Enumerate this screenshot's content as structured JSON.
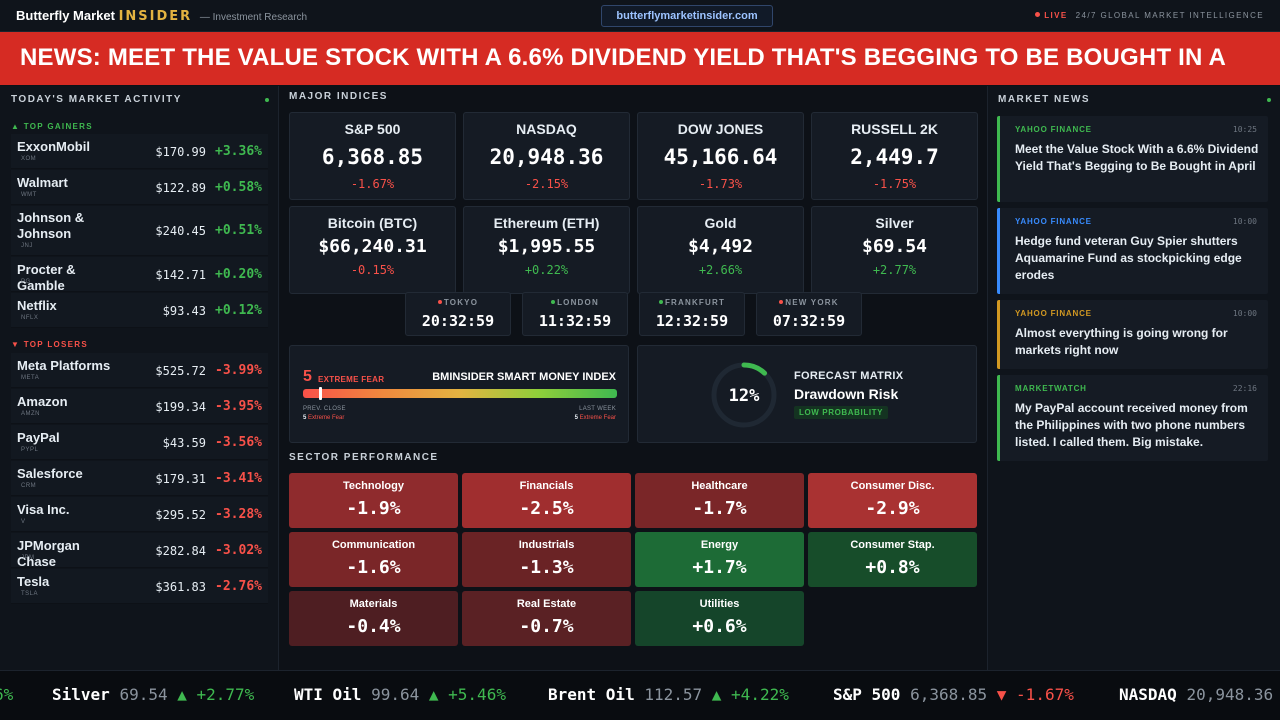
{
  "header": {
    "brand_main": "Butterfly Market",
    "brand_accent": "INSIDER",
    "brand_sub": "— Investment Research",
    "url": "butterflymarketinsider.com",
    "live_label": "LIVE",
    "tagline": "24/7 GLOBAL MARKET INTELLIGENCE"
  },
  "banner": {
    "text": "NEWS: MEET THE VALUE STOCK WITH A 6.6% DIVIDEND YIELD THAT'S BEGGING TO BE BOUGHT IN A"
  },
  "market_activity": {
    "title": "TODAY'S MARKET ACTIVITY",
    "gainers_label": "▲ TOP GAINERS",
    "losers_label": "▼ TOP LOSERS",
    "gainers": [
      {
        "name": "ExxonMobil",
        "ticker": "XOM",
        "price": "$170.99",
        "change": "+3.36%"
      },
      {
        "name": "Walmart",
        "ticker": "WMT",
        "price": "$122.89",
        "change": "+0.58%"
      },
      {
        "name": "Johnson & Johnson",
        "ticker": "JNJ",
        "price": "$240.45",
        "change": "+0.51%"
      },
      {
        "name": "Procter & Gamble",
        "ticker": "PG",
        "price": "$142.71",
        "change": "+0.20%"
      },
      {
        "name": "Netflix",
        "ticker": "NFLX",
        "price": "$93.43",
        "change": "+0.12%"
      }
    ],
    "losers": [
      {
        "name": "Meta Platforms",
        "ticker": "META",
        "price": "$525.72",
        "change": "-3.99%"
      },
      {
        "name": "Amazon",
        "ticker": "AMZN",
        "price": "$199.34",
        "change": "-3.95%"
      },
      {
        "name": "PayPal",
        "ticker": "PYPL",
        "price": "$43.59",
        "change": "-3.56%"
      },
      {
        "name": "Salesforce",
        "ticker": "CRM",
        "price": "$179.31",
        "change": "-3.41%"
      },
      {
        "name": "Visa Inc.",
        "ticker": "V",
        "price": "$295.52",
        "change": "-3.28%"
      },
      {
        "name": "JPMorgan Chase",
        "ticker": "JPM",
        "price": "$282.84",
        "change": "-3.02%"
      },
      {
        "name": "Tesla",
        "ticker": "TSLA",
        "price": "$361.83",
        "change": "-2.76%"
      }
    ]
  },
  "indices": {
    "title": "MAJOR INDICES",
    "items": [
      {
        "name": "S&P 500",
        "value": "6,368.85",
        "change": "-1.67%",
        "dir": "down"
      },
      {
        "name": "NASDAQ",
        "value": "20,948.36",
        "change": "-2.15%",
        "dir": "down"
      },
      {
        "name": "DOW JONES",
        "value": "45,166.64",
        "change": "-1.73%",
        "dir": "down"
      },
      {
        "name": "RUSSELL 2K",
        "value": "2,449.7",
        "change": "-1.75%",
        "dir": "down"
      },
      {
        "name": "Bitcoin (BTC)",
        "value": "$66,240.31",
        "change": "-0.15%",
        "dir": "down"
      },
      {
        "name": "Ethereum (ETH)",
        "value": "$1,995.55",
        "change": "+0.22%",
        "dir": "up"
      },
      {
        "name": "Gold",
        "value": "$4,492",
        "change": "+2.66%",
        "dir": "up"
      },
      {
        "name": "Silver",
        "value": "$69.54",
        "change": "+2.77%",
        "dir": "up"
      }
    ]
  },
  "clocks": [
    {
      "city": "TOKYO",
      "time": "20:32:59",
      "color": "#f85149"
    },
    {
      "city": "LONDON",
      "time": "11:32:59",
      "color": "#3fb950"
    },
    {
      "city": "FRANKFURT",
      "time": "12:32:59",
      "color": "#3fb950"
    },
    {
      "city": "NEW YORK",
      "time": "07:32:59",
      "color": "#f85149"
    }
  ],
  "smart_money": {
    "value": "5",
    "label": "EXTREME FEAR",
    "title": "BMINSIDER SMART MONEY INDEX",
    "level_percent": 5,
    "prev_close_label": "PREV. CLOSE",
    "prev_close_value": "5",
    "prev_close_text": "Extreme Fear",
    "last_week_label": "LAST WEEK",
    "last_week_value": "5",
    "last_week_text": "Extreme Fear"
  },
  "forecast": {
    "percent": "12%",
    "percent_value": 12,
    "label": "FORECAST MATRIX",
    "title": "Drawdown Risk",
    "badge": "LOW PROBABILITY"
  },
  "sectors": {
    "title": "SECTOR PERFORMANCE",
    "items": [
      {
        "name": "Technology",
        "value": "-1.9%",
        "color": "#8f2b2d"
      },
      {
        "name": "Financials",
        "value": "-2.5%",
        "color": "#a02e2f"
      },
      {
        "name": "Healthcare",
        "value": "-1.7%",
        "color": "#7a2628"
      },
      {
        "name": "Consumer Disc.",
        "value": "-2.9%",
        "color": "#a93232"
      },
      {
        "name": "Communication",
        "value": "-1.6%",
        "color": "#7a2628"
      },
      {
        "name": "Industrials",
        "value": "-1.3%",
        "color": "#6a2325"
      },
      {
        "name": "Energy",
        "value": "+1.7%",
        "color": "#1d6b36"
      },
      {
        "name": "Consumer Stap.",
        "value": "+0.8%",
        "color": "#174d2a"
      },
      {
        "name": "Materials",
        "value": "-0.4%",
        "color": "#4e1e22"
      },
      {
        "name": "Real Estate",
        "value": "-0.7%",
        "color": "#5a2124"
      },
      {
        "name": "Utilities",
        "value": "+0.6%",
        "color": "#15452a"
      }
    ]
  },
  "market_news": {
    "title": "MARKET NEWS",
    "items": [
      {
        "source": "YAHOO FINANCE",
        "time": "10:25",
        "headline": "Meet the Value Stock With a 6.6% Dividend Yield That's Begging to Be Bought in April",
        "color": "#3fb950"
      },
      {
        "source": "YAHOO FINANCE",
        "time": "10:00",
        "headline": "Hedge fund veteran Guy Spier shutters Aquamarine Fund as stockpicking edge erodes",
        "color": "#388bfd"
      },
      {
        "source": "YAHOO FINANCE",
        "time": "10:00",
        "headline": "Almost everything is going wrong for markets right now",
        "color": "#d29922"
      },
      {
        "source": "MARKETWATCH",
        "time": "22:16",
        "headline": "My PayPal account received money from the Philippines with two phone numbers listed. I called them. Big mistake.",
        "color": "#3fb950"
      }
    ]
  },
  "ticker": [
    {
      "name": "",
      "price": "",
      "change": "6%",
      "dir": "up"
    },
    {
      "name": "Silver",
      "price": "69.54",
      "change": "▲ +2.77%",
      "dir": "up"
    },
    {
      "name": "WTI Oil",
      "price": "99.64",
      "change": "▲ +5.46%",
      "dir": "up"
    },
    {
      "name": "Brent Oil",
      "price": "112.57",
      "change": "▲ +4.22%",
      "dir": "up"
    },
    {
      "name": "S&P 500",
      "price": "6,368.85",
      "change": "▼ -1.67%",
      "dir": "down"
    },
    {
      "name": "NASDAQ",
      "price": "20,948.36",
      "change": "",
      "dir": "down"
    }
  ]
}
